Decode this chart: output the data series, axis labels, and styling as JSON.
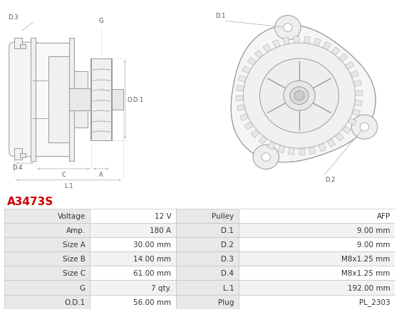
{
  "title": "A3473S",
  "title_color": "#cc0000",
  "bg_color": "#ffffff",
  "table_header_bg": "#e8e8e8",
  "table_row_bg1": "#ffffff",
  "table_row_bg2": "#f2f2f2",
  "table_border_color": "#bbbbbb",
  "table_text_color": "#333333",
  "rows": [
    [
      "Voltage",
      "12 V",
      "Pulley",
      "AFP"
    ],
    [
      "Amp.",
      "180 A",
      "D.1",
      "9.00 mm"
    ],
    [
      "Size A",
      "30.00 mm",
      "D.2",
      "9.00 mm"
    ],
    [
      "Size B",
      "14.00 mm",
      "D.3",
      "M8x1.25 mm"
    ],
    [
      "Size C",
      "61.00 mm",
      "D.4",
      "M8x1.25 mm"
    ],
    [
      "G",
      "7 qty.",
      "L.1",
      "192.00 mm"
    ],
    [
      "O.D.1",
      "56.00 mm",
      "Plug",
      "PL_2303"
    ]
  ],
  "lc": "#999999",
  "lc_dim": "#aaaaaa",
  "font_size_title": 11,
  "font_size_table": 7.5,
  "font_size_label": 6.0
}
